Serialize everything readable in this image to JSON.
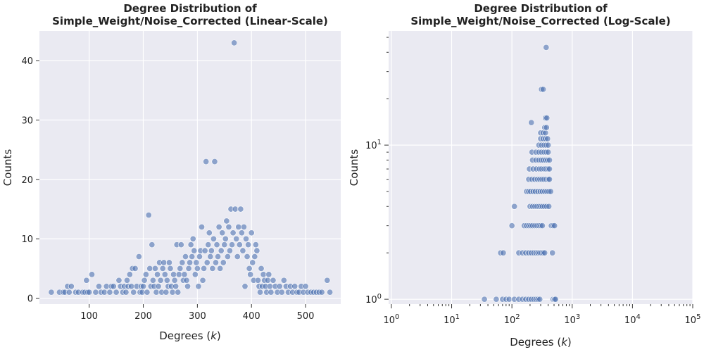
{
  "chart_data": [
    {
      "type": "scatter",
      "title_line1": "Degree Distribution of",
      "title_line2": "Simple_Weight/Noise_Corrected (Linear-Scale)",
      "xlabel": "Degrees (k)",
      "ylabel": "Counts",
      "xscale": "linear",
      "yscale": "linear",
      "xlim": [
        8,
        565
      ],
      "ylim": [
        -1,
        45
      ],
      "xticks": [
        100,
        200,
        300,
        400,
        500
      ],
      "yticks": [
        0,
        10,
        20,
        30,
        40
      ],
      "grid": true,
      "point_color": "#4c72b0",
      "points": [
        [
          30,
          1
        ],
        [
          45,
          1
        ],
        [
          52,
          1
        ],
        [
          55,
          1
        ],
        [
          60,
          2
        ],
        [
          63,
          1
        ],
        [
          67,
          2
        ],
        [
          75,
          1
        ],
        [
          80,
          1
        ],
        [
          88,
          1
        ],
        [
          92,
          1
        ],
        [
          95,
          3
        ],
        [
          97,
          1
        ],
        [
          100,
          1
        ],
        [
          105,
          4
        ],
        [
          112,
          1
        ],
        [
          118,
          2
        ],
        [
          122,
          1
        ],
        [
          128,
          1
        ],
        [
          132,
          2
        ],
        [
          138,
          1
        ],
        [
          141,
          2
        ],
        [
          145,
          2
        ],
        [
          150,
          1
        ],
        [
          155,
          3
        ],
        [
          158,
          2
        ],
        [
          162,
          1
        ],
        [
          165,
          2
        ],
        [
          168,
          1
        ],
        [
          170,
          3
        ],
        [
          172,
          2
        ],
        [
          175,
          4
        ],
        [
          178,
          2
        ],
        [
          180,
          5
        ],
        [
          182,
          1
        ],
        [
          185,
          5
        ],
        [
          188,
          2
        ],
        [
          192,
          7
        ],
        [
          194,
          1
        ],
        [
          196,
          2
        ],
        [
          198,
          1
        ],
        [
          200,
          2
        ],
        [
          202,
          3
        ],
        [
          205,
          4
        ],
        [
          207,
          1
        ],
        [
          210,
          14
        ],
        [
          212,
          5
        ],
        [
          214,
          2
        ],
        [
          216,
          9
        ],
        [
          218,
          3
        ],
        [
          220,
          2
        ],
        [
          222,
          5
        ],
        [
          224,
          1
        ],
        [
          226,
          4
        ],
        [
          228,
          2
        ],
        [
          230,
          6
        ],
        [
          232,
          3
        ],
        [
          234,
          1
        ],
        [
          236,
          5
        ],
        [
          238,
          6
        ],
        [
          240,
          4
        ],
        [
          242,
          1
        ],
        [
          244,
          3
        ],
        [
          246,
          2
        ],
        [
          248,
          6
        ],
        [
          250,
          5
        ],
        [
          252,
          2
        ],
        [
          254,
          1
        ],
        [
          256,
          4
        ],
        [
          258,
          3
        ],
        [
          260,
          2
        ],
        [
          262,
          9
        ],
        [
          264,
          1
        ],
        [
          266,
          4
        ],
        [
          268,
          5
        ],
        [
          270,
          9
        ],
        [
          272,
          6
        ],
        [
          274,
          3
        ],
        [
          276,
          4
        ],
        [
          278,
          7
        ],
        [
          280,
          3
        ],
        [
          282,
          2
        ],
        [
          284,
          5
        ],
        [
          286,
          6
        ],
        [
          288,
          9
        ],
        [
          290,
          7
        ],
        [
          292,
          10
        ],
        [
          294,
          8
        ],
        [
          296,
          4
        ],
        [
          298,
          6
        ],
        [
          300,
          5
        ],
        [
          302,
          2
        ],
        [
          304,
          7
        ],
        [
          306,
          8
        ],
        [
          308,
          12
        ],
        [
          310,
          3
        ],
        [
          312,
          5
        ],
        [
          314,
          8
        ],
        [
          316,
          23
        ],
        [
          318,
          6
        ],
        [
          320,
          9
        ],
        [
          322,
          11
        ],
        [
          324,
          7
        ],
        [
          326,
          8
        ],
        [
          328,
          5
        ],
        [
          330,
          10
        ],
        [
          332,
          23
        ],
        [
          334,
          6
        ],
        [
          336,
          9
        ],
        [
          338,
          7
        ],
        [
          340,
          12
        ],
        [
          342,
          5
        ],
        [
          344,
          8
        ],
        [
          346,
          11
        ],
        [
          348,
          6
        ],
        [
          350,
          9
        ],
        [
          352,
          10
        ],
        [
          354,
          13
        ],
        [
          356,
          7
        ],
        [
          358,
          12
        ],
        [
          360,
          8
        ],
        [
          362,
          15
        ],
        [
          364,
          9
        ],
        [
          366,
          11
        ],
        [
          368,
          43
        ],
        [
          370,
          15
        ],
        [
          372,
          10
        ],
        [
          374,
          7
        ],
        [
          376,
          12
        ],
        [
          378,
          9
        ],
        [
          380,
          15
        ],
        [
          382,
          11
        ],
        [
          384,
          8
        ],
        [
          386,
          12
        ],
        [
          388,
          2
        ],
        [
          390,
          10
        ],
        [
          392,
          7
        ],
        [
          394,
          9
        ],
        [
          396,
          5
        ],
        [
          398,
          4
        ],
        [
          400,
          11
        ],
        [
          402,
          6
        ],
        [
          404,
          3
        ],
        [
          406,
          7
        ],
        [
          408,
          9
        ],
        [
          410,
          8
        ],
        [
          412,
          3
        ],
        [
          414,
          2
        ],
        [
          416,
          1
        ],
        [
          418,
          5
        ],
        [
          420,
          2
        ],
        [
          422,
          4
        ],
        [
          424,
          3
        ],
        [
          426,
          2
        ],
        [
          428,
          1
        ],
        [
          430,
          3
        ],
        [
          432,
          4
        ],
        [
          434,
          2
        ],
        [
          436,
          1
        ],
        [
          440,
          3
        ],
        [
          444,
          2
        ],
        [
          448,
          1
        ],
        [
          452,
          2
        ],
        [
          456,
          1
        ],
        [
          460,
          3
        ],
        [
          464,
          2
        ],
        [
          468,
          1
        ],
        [
          472,
          2
        ],
        [
          476,
          1
        ],
        [
          480,
          2
        ],
        [
          484,
          1
        ],
        [
          488,
          1
        ],
        [
          492,
          2
        ],
        [
          496,
          1
        ],
        [
          500,
          2
        ],
        [
          504,
          1
        ],
        [
          510,
          1
        ],
        [
          515,
          1
        ],
        [
          520,
          1
        ],
        [
          525,
          1
        ],
        [
          530,
          1
        ],
        [
          540,
          3
        ],
        [
          545,
          1
        ]
      ]
    },
    {
      "type": "scatter",
      "title_line1": "Degree Distribution of",
      "title_line2": "Simple_Weight/Noise_Corrected (Log-Scale)",
      "xlabel": "Degrees (k)",
      "ylabel": "Counts",
      "xscale": "log",
      "yscale": "log",
      "xlim": [
        0.9,
        100000
      ],
      "ylim": [
        0.93,
        55
      ],
      "xtick_labels": [
        "10^0",
        "10^1",
        "10^2",
        "10^3",
        "10^4",
        "10^5"
      ],
      "ytick_labels": [
        "10^0",
        "10^1"
      ],
      "grid": true,
      "point_color": "#4c72b0",
      "points": [
        [
          35,
          1
        ],
        [
          55,
          1
        ],
        [
          70,
          1
        ],
        [
          80,
          1
        ],
        [
          90,
          1
        ],
        [
          110,
          1
        ],
        [
          130,
          1
        ],
        [
          150,
          1
        ],
        [
          170,
          1
        ],
        [
          190,
          1
        ],
        [
          210,
          1
        ],
        [
          230,
          1
        ],
        [
          250,
          1
        ],
        [
          270,
          1
        ],
        [
          290,
          1
        ],
        [
          480,
          1
        ],
        [
          510,
          1
        ],
        [
          530,
          1
        ],
        [
          65,
          2
        ],
        [
          72,
          2
        ],
        [
          130,
          2
        ],
        [
          150,
          2
        ],
        [
          170,
          2
        ],
        [
          190,
          2
        ],
        [
          210,
          2
        ],
        [
          230,
          2
        ],
        [
          250,
          2
        ],
        [
          270,
          2
        ],
        [
          290,
          2
        ],
        [
          310,
          2
        ],
        [
          330,
          2
        ],
        [
          350,
          2
        ],
        [
          470,
          2
        ],
        [
          100,
          3
        ],
        [
          160,
          3
        ],
        [
          175,
          3
        ],
        [
          190,
          3
        ],
        [
          205,
          3
        ],
        [
          220,
          3
        ],
        [
          240,
          3
        ],
        [
          260,
          3
        ],
        [
          280,
          3
        ],
        [
          300,
          3
        ],
        [
          320,
          3
        ],
        [
          450,
          3
        ],
        [
          480,
          3
        ],
        [
          510,
          3
        ],
        [
          110,
          4
        ],
        [
          200,
          4
        ],
        [
          220,
          4
        ],
        [
          240,
          4
        ],
        [
          260,
          4
        ],
        [
          280,
          4
        ],
        [
          300,
          4
        ],
        [
          320,
          4
        ],
        [
          345,
          4
        ],
        [
          375,
          4
        ],
        [
          410,
          4
        ],
        [
          175,
          5
        ],
        [
          190,
          5
        ],
        [
          205,
          5
        ],
        [
          225,
          5
        ],
        [
          245,
          5
        ],
        [
          270,
          5
        ],
        [
          295,
          5
        ],
        [
          320,
          5
        ],
        [
          350,
          5
        ],
        [
          380,
          5
        ],
        [
          410,
          5
        ],
        [
          440,
          5
        ],
        [
          190,
          6
        ],
        [
          215,
          6
        ],
        [
          240,
          6
        ],
        [
          265,
          6
        ],
        [
          290,
          6
        ],
        [
          315,
          6
        ],
        [
          340,
          6
        ],
        [
          370,
          6
        ],
        [
          400,
          6
        ],
        [
          420,
          6
        ],
        [
          195,
          7
        ],
        [
          225,
          7
        ],
        [
          255,
          7
        ],
        [
          285,
          7
        ],
        [
          310,
          7
        ],
        [
          340,
          7
        ],
        [
          365,
          7
        ],
        [
          395,
          7
        ],
        [
          420,
          7
        ],
        [
          220,
          8
        ],
        [
          250,
          8
        ],
        [
          280,
          8
        ],
        [
          305,
          8
        ],
        [
          330,
          8
        ],
        [
          360,
          8
        ],
        [
          390,
          8
        ],
        [
          420,
          8
        ],
        [
          215,
          9
        ],
        [
          250,
          9
        ],
        [
          280,
          9
        ],
        [
          310,
          9
        ],
        [
          340,
          9
        ],
        [
          370,
          9
        ],
        [
          400,
          9
        ],
        [
          280,
          10
        ],
        [
          310,
          10
        ],
        [
          340,
          10
        ],
        [
          370,
          10
        ],
        [
          400,
          10
        ],
        [
          300,
          11
        ],
        [
          330,
          11
        ],
        [
          360,
          11
        ],
        [
          390,
          11
        ],
        [
          300,
          12
        ],
        [
          330,
          12
        ],
        [
          360,
          12
        ],
        [
          350,
          13
        ],
        [
          375,
          13
        ],
        [
          210,
          14
        ],
        [
          360,
          15
        ],
        [
          380,
          15
        ],
        [
          310,
          23
        ],
        [
          330,
          23
        ],
        [
          370,
          43
        ]
      ]
    }
  ]
}
